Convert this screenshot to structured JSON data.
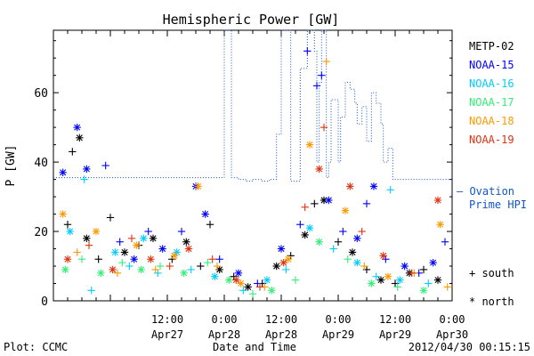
{
  "chart_data": {
    "type": "scatter",
    "title": "Hemispheric Power [GW]",
    "xlabel": "Date and Time",
    "ylabel": "P [GW]",
    "ylim": [
      0,
      78
    ],
    "xlim": [
      "2012-04-26 12:00",
      "2012-04-30 00:00"
    ],
    "x_ticks": [
      {
        "at": "2012-04-27 12:00",
        "time": "12:00",
        "date": "Apr27"
      },
      {
        "at": "2012-04-28 00:00",
        "time": "0:00",
        "date": "Apr28"
      },
      {
        "at": "2012-04-28 12:00",
        "time": "12:00",
        "date": "Apr28"
      },
      {
        "at": "2012-04-29 00:00",
        "time": "0:00",
        "date": "Apr29"
      },
      {
        "at": "2012-04-29 12:00",
        "time": "12:00",
        "date": "Apr29"
      },
      {
        "at": "2012-04-30 00:00",
        "time": "0:00",
        "date": "Apr30"
      }
    ],
    "y_ticks": [
      0,
      20,
      40,
      60
    ],
    "symbol_legend": {
      "south": "+ south",
      "north": "* north"
    },
    "series": [
      {
        "name": "METP-02",
        "color": "#000000",
        "points": [
          {
            "x": "2012-04-26 15:00",
            "y": 22,
            "hemi": "south"
          },
          {
            "x": "2012-04-26 16:00",
            "y": 43,
            "hemi": "south"
          },
          {
            "x": "2012-04-26 17:30",
            "y": 47,
            "hemi": "north"
          },
          {
            "x": "2012-04-26 19:00",
            "y": 18,
            "hemi": "north"
          },
          {
            "x": "2012-04-26 21:30",
            "y": 12,
            "hemi": "south"
          },
          {
            "x": "2012-04-27 00:00",
            "y": 24,
            "hemi": "south"
          },
          {
            "x": "2012-04-27 03:00",
            "y": 14,
            "hemi": "north"
          },
          {
            "x": "2012-04-27 06:00",
            "y": 16,
            "hemi": "south"
          },
          {
            "x": "2012-04-27 09:00",
            "y": 18,
            "hemi": "north"
          },
          {
            "x": "2012-04-27 13:00",
            "y": 12,
            "hemi": "south"
          },
          {
            "x": "2012-04-27 16:00",
            "y": 17,
            "hemi": "north"
          },
          {
            "x": "2012-04-27 19:00",
            "y": 10,
            "hemi": "south"
          },
          {
            "x": "2012-04-27 21:00",
            "y": 22,
            "hemi": "south"
          },
          {
            "x": "2012-04-27 23:00",
            "y": 9,
            "hemi": "north"
          },
          {
            "x": "2012-04-28 02:00",
            "y": 7,
            "hemi": "south"
          },
          {
            "x": "2012-04-28 05:00",
            "y": 4,
            "hemi": "north"
          },
          {
            "x": "2012-04-28 08:00",
            "y": 5,
            "hemi": "south"
          },
          {
            "x": "2012-04-28 11:00",
            "y": 10,
            "hemi": "north"
          },
          {
            "x": "2012-04-28 14:00",
            "y": 13,
            "hemi": "south"
          },
          {
            "x": "2012-04-28 17:00",
            "y": 19,
            "hemi": "north"
          },
          {
            "x": "2012-04-28 19:00",
            "y": 28,
            "hemi": "south"
          },
          {
            "x": "2012-04-28 21:00",
            "y": 29,
            "hemi": "north"
          },
          {
            "x": "2012-04-29 00:00",
            "y": 17,
            "hemi": "south"
          },
          {
            "x": "2012-04-29 03:00",
            "y": 14,
            "hemi": "north"
          },
          {
            "x": "2012-04-29 06:00",
            "y": 9,
            "hemi": "south"
          },
          {
            "x": "2012-04-29 09:00",
            "y": 6,
            "hemi": "north"
          },
          {
            "x": "2012-04-29 12:00",
            "y": 5,
            "hemi": "south"
          },
          {
            "x": "2012-04-29 15:00",
            "y": 8,
            "hemi": "north"
          },
          {
            "x": "2012-04-29 18:00",
            "y": 9,
            "hemi": "south"
          },
          {
            "x": "2012-04-29 21:00",
            "y": 6,
            "hemi": "north"
          }
        ]
      },
      {
        "name": "NOAA-15",
        "color": "#0000ff",
        "points": [
          {
            "x": "2012-04-26 14:00",
            "y": 37,
            "hemi": "north"
          },
          {
            "x": "2012-04-26 17:00",
            "y": 50,
            "hemi": "north"
          },
          {
            "x": "2012-04-26 19:00",
            "y": 38,
            "hemi": "north"
          },
          {
            "x": "2012-04-26 23:00",
            "y": 39,
            "hemi": "south"
          },
          {
            "x": "2012-04-27 02:00",
            "y": 17,
            "hemi": "south"
          },
          {
            "x": "2012-04-27 05:00",
            "y": 12,
            "hemi": "north"
          },
          {
            "x": "2012-04-27 08:00",
            "y": 20,
            "hemi": "south"
          },
          {
            "x": "2012-04-27 11:00",
            "y": 15,
            "hemi": "north"
          },
          {
            "x": "2012-04-27 15:00",
            "y": 20,
            "hemi": "south"
          },
          {
            "x": "2012-04-27 18:00",
            "y": 33,
            "hemi": "north"
          },
          {
            "x": "2012-04-27 20:00",
            "y": 25,
            "hemi": "north"
          },
          {
            "x": "2012-04-27 23:00",
            "y": 12,
            "hemi": "south"
          },
          {
            "x": "2012-04-28 03:00",
            "y": 8,
            "hemi": "north"
          },
          {
            "x": "2012-04-28 07:00",
            "y": 5,
            "hemi": "south"
          },
          {
            "x": "2012-04-28 12:00",
            "y": 15,
            "hemi": "north"
          },
          {
            "x": "2012-04-28 16:00",
            "y": 22,
            "hemi": "south"
          },
          {
            "x": "2012-04-28 17:30",
            "y": 72,
            "hemi": "south"
          },
          {
            "x": "2012-04-28 19:30",
            "y": 62,
            "hemi": "south"
          },
          {
            "x": "2012-04-28 20:30",
            "y": 65,
            "hemi": "south"
          },
          {
            "x": "2012-04-28 22:00",
            "y": 29,
            "hemi": "north"
          },
          {
            "x": "2012-04-29 01:00",
            "y": 20,
            "hemi": "south"
          },
          {
            "x": "2012-04-29 04:00",
            "y": 18,
            "hemi": "north"
          },
          {
            "x": "2012-04-29 06:00",
            "y": 28,
            "hemi": "south"
          },
          {
            "x": "2012-04-29 07:30",
            "y": 33,
            "hemi": "north"
          },
          {
            "x": "2012-04-29 10:00",
            "y": 12,
            "hemi": "south"
          },
          {
            "x": "2012-04-29 14:00",
            "y": 10,
            "hemi": "north"
          },
          {
            "x": "2012-04-29 17:00",
            "y": 8,
            "hemi": "south"
          },
          {
            "x": "2012-04-29 20:00",
            "y": 11,
            "hemi": "north"
          },
          {
            "x": "2012-04-29 22:30",
            "y": 17,
            "hemi": "south"
          }
        ]
      },
      {
        "name": "NOAA-16",
        "color": "#00ccff",
        "points": [
          {
            "x": "2012-04-26 15:30",
            "y": 20,
            "hemi": "north"
          },
          {
            "x": "2012-04-26 18:30",
            "y": 35,
            "hemi": "south"
          },
          {
            "x": "2012-04-26 20:00",
            "y": 3,
            "hemi": "south"
          },
          {
            "x": "2012-04-27 01:00",
            "y": 14,
            "hemi": "north"
          },
          {
            "x": "2012-04-27 04:00",
            "y": 10,
            "hemi": "south"
          },
          {
            "x": "2012-04-27 07:00",
            "y": 18,
            "hemi": "north"
          },
          {
            "x": "2012-04-27 10:00",
            "y": 8,
            "hemi": "south"
          },
          {
            "x": "2012-04-27 14:00",
            "y": 14,
            "hemi": "north"
          },
          {
            "x": "2012-04-27 17:00",
            "y": 9,
            "hemi": "south"
          },
          {
            "x": "2012-04-27 22:00",
            "y": 7,
            "hemi": "north"
          },
          {
            "x": "2012-04-28 04:00",
            "y": 3,
            "hemi": "south"
          },
          {
            "x": "2012-04-28 09:00",
            "y": 6,
            "hemi": "north"
          },
          {
            "x": "2012-04-28 13:00",
            "y": 9,
            "hemi": "south"
          },
          {
            "x": "2012-04-28 18:00",
            "y": 21,
            "hemi": "north"
          },
          {
            "x": "2012-04-28 23:00",
            "y": 15,
            "hemi": "south"
          },
          {
            "x": "2012-04-29 04:00",
            "y": 11,
            "hemi": "north"
          },
          {
            "x": "2012-04-29 08:00",
            "y": 7,
            "hemi": "south"
          },
          {
            "x": "2012-04-29 11:00",
            "y": 32,
            "hemi": "south"
          },
          {
            "x": "2012-04-29 13:00",
            "y": 6,
            "hemi": "north"
          },
          {
            "x": "2012-04-29 19:00",
            "y": 5,
            "hemi": "south"
          }
        ]
      },
      {
        "name": "NOAA-17",
        "color": "#33ee77",
        "points": [
          {
            "x": "2012-04-26 14:30",
            "y": 9,
            "hemi": "north"
          },
          {
            "x": "2012-04-26 18:00",
            "y": 12,
            "hemi": "south"
          },
          {
            "x": "2012-04-26 22:00",
            "y": 8,
            "hemi": "north"
          },
          {
            "x": "2012-04-27 02:30",
            "y": 11,
            "hemi": "south"
          },
          {
            "x": "2012-04-27 06:30",
            "y": 9,
            "hemi": "north"
          },
          {
            "x": "2012-04-27 10:30",
            "y": 10,
            "hemi": "south"
          },
          {
            "x": "2012-04-27 15:30",
            "y": 8,
            "hemi": "north"
          },
          {
            "x": "2012-04-27 20:30",
            "y": 11,
            "hemi": "south"
          },
          {
            "x": "2012-04-28 01:00",
            "y": 6,
            "hemi": "north"
          },
          {
            "x": "2012-04-28 06:00",
            "y": 2,
            "hemi": "south"
          },
          {
            "x": "2012-04-28 10:00",
            "y": 3,
            "hemi": "north"
          },
          {
            "x": "2012-04-28 15:00",
            "y": 6,
            "hemi": "south"
          },
          {
            "x": "2012-04-28 20:00",
            "y": 17,
            "hemi": "north"
          },
          {
            "x": "2012-04-29 02:00",
            "y": 12,
            "hemi": "south"
          },
          {
            "x": "2012-04-29 07:00",
            "y": 5,
            "hemi": "north"
          },
          {
            "x": "2012-04-29 12:30",
            "y": 4,
            "hemi": "south"
          },
          {
            "x": "2012-04-29 18:00",
            "y": 3,
            "hemi": "north"
          }
        ]
      },
      {
        "name": "NOAA-18",
        "color": "#ff9900",
        "points": [
          {
            "x": "2012-04-26 14:00",
            "y": 25,
            "hemi": "north"
          },
          {
            "x": "2012-04-26 17:00",
            "y": 14,
            "hemi": "south"
          },
          {
            "x": "2012-04-26 21:00",
            "y": 20,
            "hemi": "north"
          },
          {
            "x": "2012-04-27 01:30",
            "y": 8,
            "hemi": "south"
          },
          {
            "x": "2012-04-27 05:30",
            "y": 16,
            "hemi": "north"
          },
          {
            "x": "2012-04-27 09:30",
            "y": 9,
            "hemi": "south"
          },
          {
            "x": "2012-04-27 13:30",
            "y": 13,
            "hemi": "north"
          },
          {
            "x": "2012-04-27 18:30",
            "y": 33,
            "hemi": "north"
          },
          {
            "x": "2012-04-27 22:30",
            "y": 10,
            "hemi": "south"
          },
          {
            "x": "2012-04-28 03:30",
            "y": 5,
            "hemi": "north"
          },
          {
            "x": "2012-04-28 08:30",
            "y": 4,
            "hemi": "south"
          },
          {
            "x": "2012-04-28 13:30",
            "y": 12,
            "hemi": "north"
          },
          {
            "x": "2012-04-28 18:00",
            "y": 45,
            "hemi": "north"
          },
          {
            "x": "2012-04-28 21:30",
            "y": 69,
            "hemi": "south"
          },
          {
            "x": "2012-04-29 01:30",
            "y": 26,
            "hemi": "north"
          },
          {
            "x": "2012-04-29 05:30",
            "y": 10,
            "hemi": "south"
          },
          {
            "x": "2012-04-29 10:30",
            "y": 7,
            "hemi": "north"
          },
          {
            "x": "2012-04-29 16:00",
            "y": 8,
            "hemi": "south"
          },
          {
            "x": "2012-04-29 21:30",
            "y": 22,
            "hemi": "north"
          },
          {
            "x": "2012-04-29 23:00",
            "y": 4,
            "hemi": "south"
          }
        ]
      },
      {
        "name": "NOAA-19",
        "color": "#dd3311",
        "points": [
          {
            "x": "2012-04-26 15:00",
            "y": 12,
            "hemi": "north"
          },
          {
            "x": "2012-04-26 19:30",
            "y": 16,
            "hemi": "south"
          },
          {
            "x": "2012-04-27 00:30",
            "y": 9,
            "hemi": "north"
          },
          {
            "x": "2012-04-27 04:30",
            "y": 18,
            "hemi": "south"
          },
          {
            "x": "2012-04-27 08:30",
            "y": 12,
            "hemi": "north"
          },
          {
            "x": "2012-04-27 12:30",
            "y": 10,
            "hemi": "south"
          },
          {
            "x": "2012-04-27 16:30",
            "y": 15,
            "hemi": "north"
          },
          {
            "x": "2012-04-27 21:30",
            "y": 12,
            "hemi": "south"
          },
          {
            "x": "2012-04-28 02:30",
            "y": 6,
            "hemi": "north"
          },
          {
            "x": "2012-04-28 07:30",
            "y": 4,
            "hemi": "south"
          },
          {
            "x": "2012-04-28 12:30",
            "y": 11,
            "hemi": "north"
          },
          {
            "x": "2012-04-28 17:00",
            "y": 27,
            "hemi": "south"
          },
          {
            "x": "2012-04-28 20:00",
            "y": 38,
            "hemi": "north"
          },
          {
            "x": "2012-04-28 21:00",
            "y": 50,
            "hemi": "south"
          },
          {
            "x": "2012-04-29 02:30",
            "y": 33,
            "hemi": "north"
          },
          {
            "x": "2012-04-29 05:00",
            "y": 20,
            "hemi": "south"
          },
          {
            "x": "2012-04-29 09:30",
            "y": 13,
            "hemi": "north"
          },
          {
            "x": "2012-04-29 15:30",
            "y": 8,
            "hemi": "south"
          },
          {
            "x": "2012-04-29 21:00",
            "y": 29,
            "hemi": "north"
          }
        ]
      }
    ],
    "ovation": {
      "name": "Ovation Prime HPI",
      "legend_label": "— Ovation Prime HPI",
      "color": "#1155cc",
      "steps": [
        {
          "x": "2012-04-26 12:00",
          "y": 35.5
        },
        {
          "x": "2012-04-28 00:00",
          "y": 78
        },
        {
          "x": "2012-04-28 01:30",
          "y": 35.5
        },
        {
          "x": "2012-04-28 03:00",
          "y": 35
        },
        {
          "x": "2012-04-28 04:30",
          "y": 34.5
        },
        {
          "x": "2012-04-28 06:00",
          "y": 35
        },
        {
          "x": "2012-04-28 08:00",
          "y": 34.5
        },
        {
          "x": "2012-04-28 09:30",
          "y": 35
        },
        {
          "x": "2012-04-28 11:00",
          "y": 48
        },
        {
          "x": "2012-04-28 12:00",
          "y": 78
        },
        {
          "x": "2012-04-28 14:00",
          "y": 34.5
        },
        {
          "x": "2012-04-28 16:00",
          "y": 67
        },
        {
          "x": "2012-04-28 17:30",
          "y": 78
        },
        {
          "x": "2012-04-28 19:00",
          "y": 72
        },
        {
          "x": "2012-04-28 19:30",
          "y": 40
        },
        {
          "x": "2012-04-28 20:00",
          "y": 63
        },
        {
          "x": "2012-04-28 20:30",
          "y": 78
        },
        {
          "x": "2012-04-28 21:30",
          "y": 35.5
        },
        {
          "x": "2012-04-28 22:00",
          "y": 40
        },
        {
          "x": "2012-04-28 22:30",
          "y": 58
        },
        {
          "x": "2012-04-29 00:00",
          "y": 40
        },
        {
          "x": "2012-04-29 00:30",
          "y": 53
        },
        {
          "x": "2012-04-29 01:30",
          "y": 63
        },
        {
          "x": "2012-04-29 02:30",
          "y": 61
        },
        {
          "x": "2012-04-29 03:30",
          "y": 57
        },
        {
          "x": "2012-04-29 04:00",
          "y": 51
        },
        {
          "x": "2012-04-29 05:00",
          "y": 56
        },
        {
          "x": "2012-04-29 06:00",
          "y": 46
        },
        {
          "x": "2012-04-29 07:00",
          "y": 60
        },
        {
          "x": "2012-04-29 08:00",
          "y": 57
        },
        {
          "x": "2012-04-29 09:00",
          "y": 51
        },
        {
          "x": "2012-04-29 09:30",
          "y": 40
        },
        {
          "x": "2012-04-29 10:30",
          "y": 44
        },
        {
          "x": "2012-04-29 11:30",
          "y": 35
        },
        {
          "x": "2012-04-30 00:00",
          "y": 35
        }
      ]
    }
  },
  "footer": {
    "plot_credit": "Plot: CCMC",
    "timestamp": "2012/04/30 00:15:15"
  }
}
